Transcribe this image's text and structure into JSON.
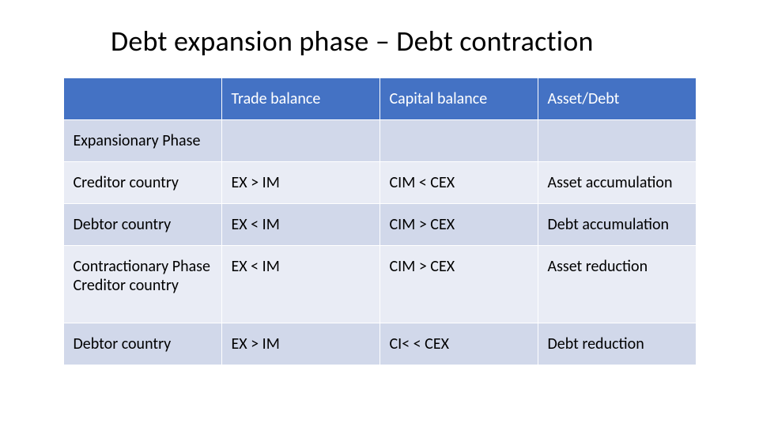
{
  "title": "Debt expansion phase – Debt contraction",
  "table": {
    "header_bg": "#4472c4",
    "header_fg": "#ffffff",
    "band_a_bg": "#d1d8ea",
    "band_b_bg": "#e9ecf5",
    "border_color": "#ffffff",
    "font_size_pt": 15,
    "columns": [
      "",
      "Trade balance",
      "Capital balance",
      "Asset/Debt"
    ],
    "rows": [
      {
        "label": "Expansionary Phase",
        "cells": [
          "",
          "",
          ""
        ],
        "band": "a",
        "tall": false
      },
      {
        "label": "Creditor country",
        "cells": [
          "EX > IM",
          "CIM < CEX",
          "Asset accumulation"
        ],
        "band": "b",
        "tall": false
      },
      {
        "label": "Debtor country",
        "cells": [
          "EX < IM",
          "CIM > CEX",
          "Debt accumulation"
        ],
        "band": "a",
        "tall": false
      },
      {
        "label": "Contractionary Phase\nCreditor country",
        "cells": [
          "EX < IM",
          "CIM > CEX",
          "Asset reduction"
        ],
        "band": "b",
        "tall": true
      },
      {
        "label": "Debtor country",
        "cells": [
          "EX > IM",
          "CI< < CEX",
          "Debt reduction"
        ],
        "band": "a",
        "tall": false
      }
    ]
  }
}
